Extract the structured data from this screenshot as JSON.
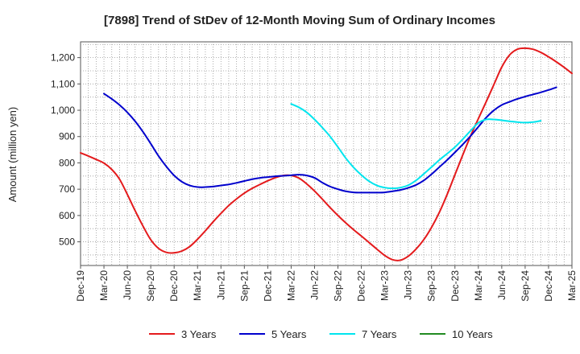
{
  "chart_data": {
    "type": "line",
    "title": "[7898]  Trend of StDev of 12-Month Moving Sum of Ordinary Incomes",
    "xlabel": "",
    "ylabel": "Amount (million yen)",
    "ylim": [
      410,
      1260
    ],
    "yticks": [
      500,
      600,
      700,
      800,
      900,
      1000,
      1100,
      1200
    ],
    "ytick_labels": [
      "500",
      "600",
      "700",
      "800",
      "900",
      "1,000",
      "1,100",
      "1,200"
    ],
    "x_start": "Dec-19",
    "x_end": "Mar-25",
    "xtick_labels": [
      "Dec-19",
      "Mar-20",
      "Jun-20",
      "Sep-20",
      "Dec-20",
      "Mar-21",
      "Jun-21",
      "Sep-21",
      "Dec-21",
      "Mar-22",
      "Jun-22",
      "Sep-22",
      "Dec-22",
      "Mar-23",
      "Jun-23",
      "Sep-23",
      "Dec-23",
      "Mar-24",
      "Jun-24",
      "Sep-24",
      "Dec-24",
      "Mar-25"
    ],
    "grid": true,
    "legend_position": "bottom",
    "series": [
      {
        "name": "3 Years",
        "color": "#e41a1c",
        "start_index": 0,
        "values": [
          838,
          826,
          813,
          799,
          775,
          738,
          680,
          618,
          560,
          508,
          475,
          460,
          458,
          465,
          482,
          510,
          542,
          576,
          608,
          638,
          663,
          685,
          703,
          718,
          732,
          744,
          752,
          752,
          742,
          720,
          693,
          662,
          630,
          600,
          572,
          546,
          522,
          497,
          472,
          448,
          432,
          430,
          445,
          472,
          508,
          555,
          612,
          680,
          755,
          830,
          902,
          968,
          1032,
          1098,
          1164,
          1210,
          1232,
          1236,
          1232,
          1220,
          1203,
          1184,
          1163,
          1140
        ]
      },
      {
        "name": "5 Years",
        "color": "#0000cd",
        "start_index": 3,
        "values": [
          1063,
          1043,
          1020,
          992,
          958,
          918,
          873,
          826,
          786,
          752,
          728,
          714,
          708,
          708,
          710,
          714,
          718,
          724,
          731,
          738,
          743,
          746,
          749,
          751,
          753,
          755,
          752,
          743,
          725,
          710,
          700,
          692,
          688,
          687,
          687,
          687,
          688,
          692,
          697,
          705,
          716,
          733,
          757,
          784,
          811,
          840,
          870,
          902,
          937,
          972,
          1000,
          1020,
          1032,
          1043,
          1052,
          1060,
          1068,
          1077,
          1087
        ]
      },
      {
        "name": "7 Years",
        "color": "#00e5ee",
        "start_index": 27,
        "values": [
          1024,
          1011,
          992,
          965,
          934,
          900,
          860,
          818,
          783,
          754,
          730,
          714,
          706,
          703,
          706,
          715,
          733,
          758,
          784,
          811,
          835,
          860,
          890,
          922,
          952,
          965,
          965,
          962,
          958,
          955,
          953,
          955,
          960
        ]
      },
      {
        "name": "10 Years",
        "color": "#228b22",
        "start_index": 0,
        "values": []
      }
    ]
  }
}
